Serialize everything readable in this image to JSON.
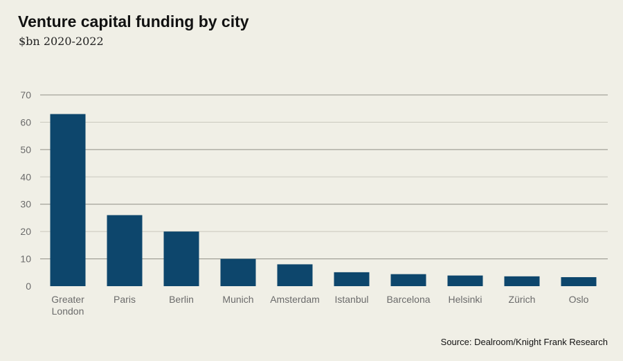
{
  "chart_data": {
    "type": "bar",
    "title": "Venture capital funding by city",
    "subtitle": "$bn 2020-2022",
    "source": "Source: Dealroom/Knight Frank Research",
    "xlabel": "",
    "ylabel": "",
    "ylim": [
      0,
      70
    ],
    "yticks": [
      0,
      10,
      20,
      30,
      40,
      50,
      60,
      70
    ],
    "grid": true,
    "bar_color": "#0d466c",
    "categories": [
      "Greater London",
      "Paris",
      "Berlin",
      "Munich",
      "Amsterdam",
      "Istanbul",
      "Barcelona",
      "Helsinki",
      "Zürich",
      "Oslo"
    ],
    "category_lines": [
      [
        "Greater",
        "London"
      ],
      [
        "Paris"
      ],
      [
        "Berlin"
      ],
      [
        "Munich"
      ],
      [
        "Amsterdam"
      ],
      [
        "Istanbul"
      ],
      [
        "Barcelona"
      ],
      [
        "Helsinki"
      ],
      [
        "Zürich"
      ],
      [
        "Oslo"
      ]
    ],
    "values": [
      63,
      26,
      20,
      10,
      8,
      5.1,
      4.4,
      3.9,
      3.6,
      3.3
    ]
  }
}
